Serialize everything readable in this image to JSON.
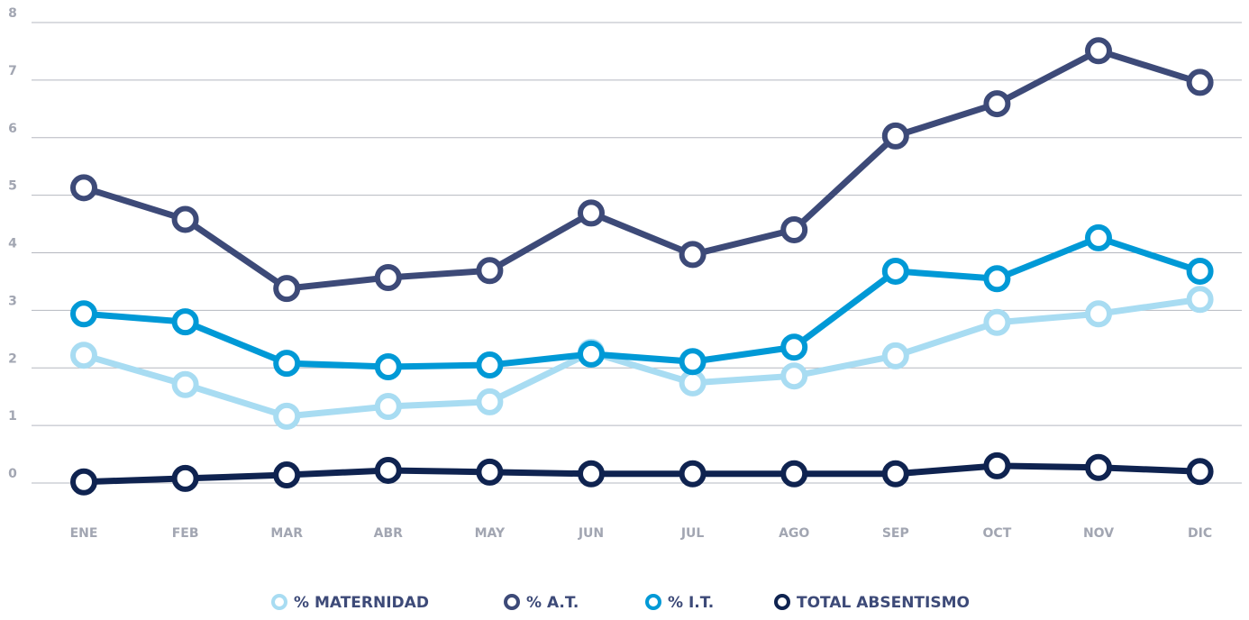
{
  "chart_data": {
    "type": "line",
    "categories": [
      "ENE",
      "FEB",
      "MAR",
      "ABR",
      "MAY",
      "JUN",
      "JUL",
      "AGO",
      "SEP",
      "OCT",
      "NOV",
      "DIC"
    ],
    "series": [
      {
        "name": "% MATERNIDAD",
        "color": "#a8dcf2",
        "values": [
          2.22,
          1.71,
          1.16,
          1.33,
          1.41,
          2.27,
          1.74,
          1.86,
          2.21,
          2.79,
          2.94,
          3.19
        ]
      },
      {
        "name": "% A.T.",
        "color": "#3d4a78",
        "values": [
          5.13,
          4.58,
          3.38,
          3.57,
          3.69,
          4.69,
          3.97,
          4.4,
          6.03,
          6.59,
          7.51,
          6.96
        ]
      },
      {
        "name": "% I.T.",
        "color": "#0099d6",
        "values": [
          2.94,
          2.8,
          2.08,
          2.02,
          2.05,
          2.24,
          2.11,
          2.36,
          3.68,
          3.55,
          4.26,
          3.68
        ]
      },
      {
        "name": "TOTAL ABSENTISMO",
        "color": "#0f2350",
        "values": [
          0.02,
          0.08,
          0.14,
          0.22,
          0.19,
          0.16,
          0.16,
          0.16,
          0.16,
          0.3,
          0.27,
          0.2
        ]
      }
    ],
    "ylim": [
      0,
      8
    ],
    "yticks": [
      0,
      1,
      2,
      3,
      4,
      5,
      6,
      7,
      8
    ],
    "grid": true,
    "legend": "bottom"
  }
}
